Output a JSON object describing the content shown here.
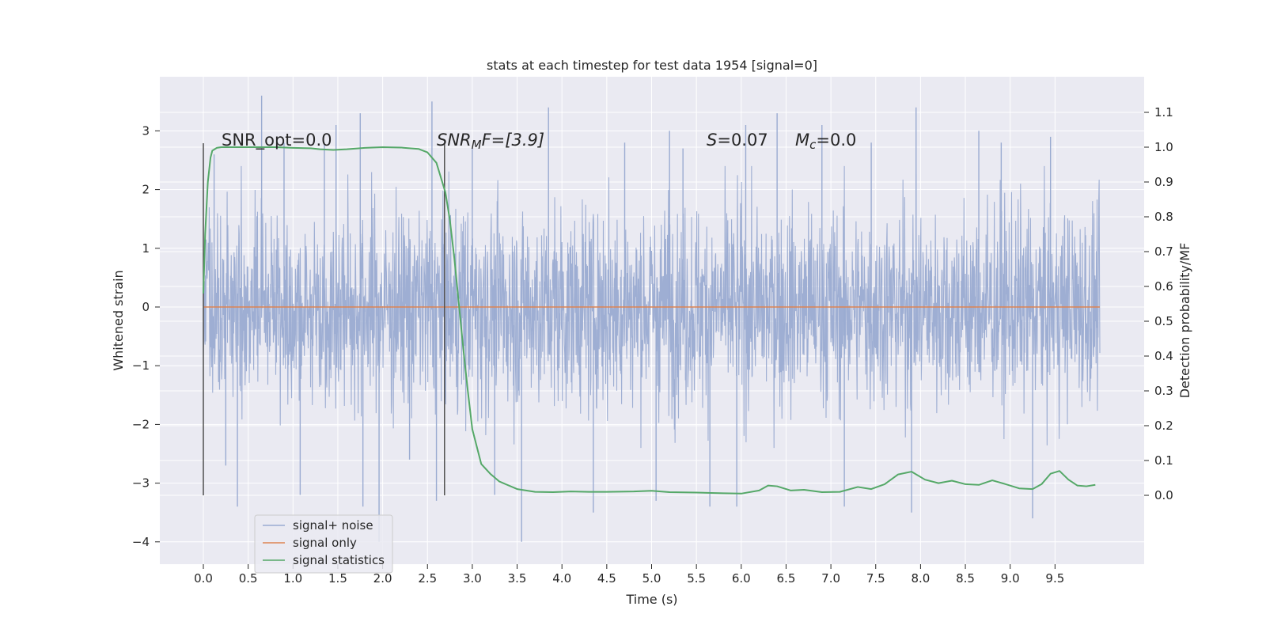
{
  "chart_data": {
    "type": "line",
    "title": "stats at each timestep for test data 1954 [signal=0]",
    "xlabel": "Time (s)",
    "ylabel": "Whitened strain",
    "y2label": "Detection probability/MF",
    "xlim": [
      -0.5,
      10.5
    ],
    "ylim": [
      -4.4,
      3.9
    ],
    "y2lim": [
      -0.2,
      1.2
    ],
    "x_ticks": [
      "0.0",
      "0.5",
      "1.0",
      "1.5",
      "2.0",
      "2.5",
      "3.0",
      "3.5",
      "4.0",
      "4.5",
      "5.0",
      "5.5",
      "6.0",
      "6.5",
      "7.0",
      "7.5",
      "8.0",
      "8.5",
      "9.0",
      "9.5"
    ],
    "y_ticks": [
      "3",
      "2",
      "1",
      "0",
      "−1",
      "−2",
      "−3",
      "−4"
    ],
    "y2_ticks": [
      "1.1",
      "1.0",
      "0.9",
      "0.8",
      "0.7",
      "0.6",
      "0.5",
      "0.4",
      "0.3",
      "0.2",
      "0.1",
      "0.0"
    ],
    "grid": true,
    "legend_position": "lower-left",
    "annotations": {
      "snr_opt": "SNR_opt=0.0",
      "snr_mf_base": "SNR",
      "snr_mf_sub": "M",
      "snr_mf_rest": "F=[3.9]",
      "s_base": "S",
      "s_rest": "=0.07",
      "mc_base": "M",
      "mc_sub": "c",
      "mc_rest": "=0.0"
    },
    "vertical_markers_s": [
      0.0,
      2.69
    ],
    "series": [
      {
        "name": "signal+ noise",
        "axis": "left",
        "color": "#9aabd1",
        "t_start": 0.0,
        "t_end": 10.0,
        "envelope_typical": [
          -2.1,
          2.3
        ],
        "peaks": [
          [
            0.12,
            2.6
          ],
          [
            0.25,
            -2.7
          ],
          [
            0.38,
            -3.4
          ],
          [
            0.65,
            3.6
          ],
          [
            0.9,
            2.8
          ],
          [
            1.08,
            -3.2
          ],
          [
            1.35,
            2.8
          ],
          [
            1.48,
            3.1
          ],
          [
            1.75,
            3.3
          ],
          [
            1.78,
            -3.4
          ],
          [
            1.96,
            -4.0
          ],
          [
            2.3,
            -2.6
          ],
          [
            2.55,
            3.5
          ],
          [
            2.6,
            -3.3
          ],
          [
            3.0,
            2.7
          ],
          [
            3.25,
            -3.2
          ],
          [
            3.55,
            -4.0
          ],
          [
            3.85,
            3.4
          ],
          [
            4.35,
            -3.5
          ],
          [
            4.7,
            2.8
          ],
          [
            5.05,
            -3.3
          ],
          [
            5.2,
            3.0
          ],
          [
            5.35,
            2.7
          ],
          [
            5.65,
            -3.4
          ],
          [
            5.95,
            -3.4
          ],
          [
            6.05,
            3.1
          ],
          [
            6.4,
            3.3
          ],
          [
            6.9,
            3.1
          ],
          [
            7.15,
            -3.4
          ],
          [
            7.45,
            2.8
          ],
          [
            7.9,
            -3.5
          ],
          [
            7.95,
            3.4
          ],
          [
            8.65,
            3.0
          ],
          [
            8.9,
            2.8
          ],
          [
            9.25,
            -3.6
          ],
          [
            9.45,
            2.9
          ]
        ]
      },
      {
        "name": "signal only",
        "axis": "left",
        "color": "#dd8452",
        "x": [
          0.0,
          10.0
        ],
        "y": [
          0.0,
          0.0
        ]
      },
      {
        "name": "signal statistics",
        "axis": "right",
        "color": "#55a868",
        "x": [
          0.0,
          0.02,
          0.05,
          0.08,
          0.1,
          0.15,
          0.2,
          0.3,
          0.5,
          0.8,
          1.0,
          1.2,
          1.3,
          1.45,
          1.6,
          1.8,
          2.0,
          2.2,
          2.4,
          2.5,
          2.6,
          2.7,
          2.75,
          2.8,
          2.85,
          2.9,
          2.95,
          3.0,
          3.1,
          3.2,
          3.3,
          3.5,
          3.7,
          3.9,
          4.1,
          4.3,
          4.5,
          4.8,
          5.0,
          5.2,
          5.5,
          5.8,
          6.0,
          6.2,
          6.3,
          6.4,
          6.55,
          6.7,
          6.9,
          7.1,
          7.3,
          7.45,
          7.6,
          7.75,
          7.9,
          8.05,
          8.2,
          8.35,
          8.5,
          8.65,
          8.8,
          8.95,
          9.1,
          9.25,
          9.35,
          9.45,
          9.55,
          9.65,
          9.75,
          9.85,
          9.95
        ],
        "y": [
          0.58,
          0.75,
          0.9,
          0.97,
          0.99,
          0.998,
          1.0,
          1.0,
          1.0,
          1.0,
          0.998,
          0.997,
          0.994,
          0.992,
          0.994,
          0.998,
          1.0,
          0.999,
          0.995,
          0.985,
          0.955,
          0.87,
          0.79,
          0.68,
          0.55,
          0.42,
          0.3,
          0.19,
          0.09,
          0.062,
          0.04,
          0.018,
          0.01,
          0.009,
          0.011,
          0.01,
          0.01,
          0.011,
          0.013,
          0.009,
          0.008,
          0.006,
          0.005,
          0.014,
          0.028,
          0.026,
          0.014,
          0.016,
          0.009,
          0.01,
          0.024,
          0.018,
          0.032,
          0.06,
          0.068,
          0.045,
          0.035,
          0.042,
          0.032,
          0.03,
          0.043,
          0.032,
          0.02,
          0.018,
          0.032,
          0.062,
          0.07,
          0.045,
          0.028,
          0.026,
          0.03
        ]
      }
    ]
  }
}
